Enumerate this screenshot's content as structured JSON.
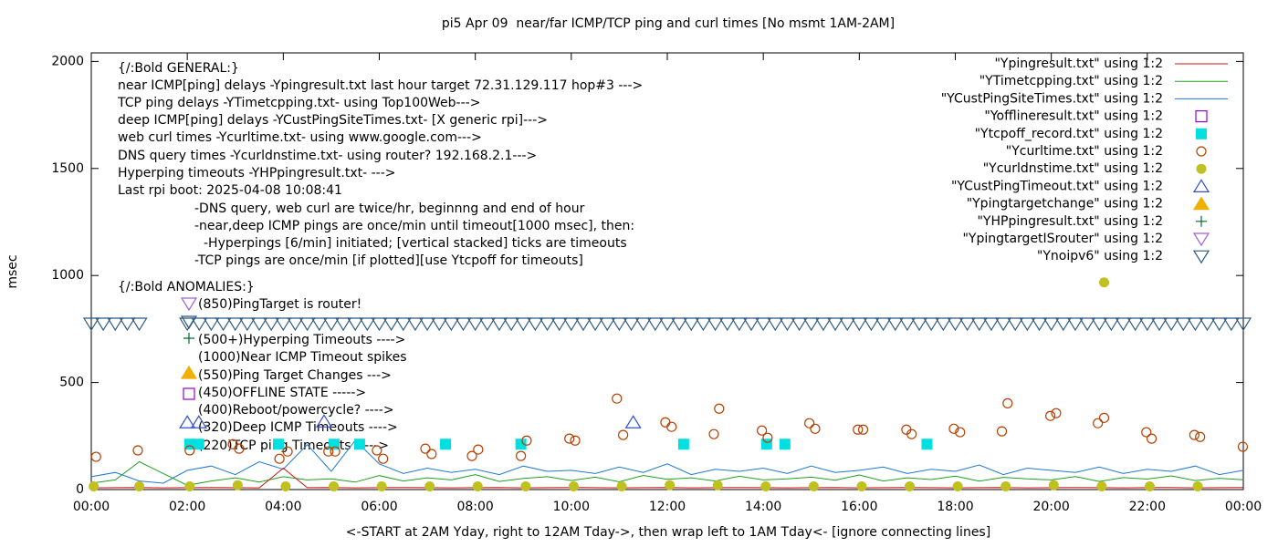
{
  "chart_data": {
    "type": "scatter",
    "title": "pi5 Apr 09  near/far ICMP/TCP ping and curl times [No msmt 1AM-2AM]",
    "xlabel": "<-START at 2AM Yday, right to 12AM Tday->, then wrap left to 1AM Tday<- [ignore connecting lines]",
    "ylabel": "msec",
    "xlim": [
      0,
      24
    ],
    "ylim": [
      0,
      2040
    ],
    "xticks": [
      {
        "value": 0,
        "label": "00:00"
      },
      {
        "value": 2,
        "label": "02:00"
      },
      {
        "value": 4,
        "label": "04:00"
      },
      {
        "value": 6,
        "label": "06:00"
      },
      {
        "value": 8,
        "label": "08:00"
      },
      {
        "value": 10,
        "label": "10:00"
      },
      {
        "value": 12,
        "label": "12:00"
      },
      {
        "value": 14,
        "label": "14:00"
      },
      {
        "value": 16,
        "label": "16:00"
      },
      {
        "value": 18,
        "label": "18:00"
      },
      {
        "value": 20,
        "label": "20:00"
      },
      {
        "value": 22,
        "label": "22:00"
      },
      {
        "value": 24,
        "label": "00:00"
      }
    ],
    "yticks": [
      0,
      500,
      1000,
      1500,
      2000
    ],
    "annotations": [
      "{/:Bold GENERAL:}",
      "near ICMP[ping] delays -Ypingresult.txt last hour target 72.31.129.117 hop#3 --->",
      "TCP ping delays -YTimetcpping.txt- using Top100Web--->",
      "deep ICMP[ping] delays -YCustPingSiteTimes.txt- [X generic rpi]--->",
      "web curl times -Ycurltime.txt- using www.google.com--->",
      "DNS query times -Ycurldnstime.txt- using router? 192.168.2.1--->",
      "Hyperping timeouts -YHPpingresult.txt- --->",
      "Last rpi boot: 2025-04-08 10:08:41",
      "-DNS query, web curl are twice/hr, beginnng and end of hour",
      "-near,deep ICMP pings are once/min until timeout[1000 msec], then:",
      "-Hyperpings [6/min] initiated; [vertical stacked] ticks are timeouts",
      "-TCP pings are once/min [if plotted][use Ytcpoff for timeouts]",
      "{/:Bold ANOMALIES:}",
      "(850)PingTarget is router!",
      "(500+)Hyperping Timeouts ---->",
      "(1000)Near ICMP Timeout spikes",
      "(550)Ping Target Changes --->",
      "(450)OFFLINE STATE ----->",
      "(400)Reboot/powercycle? ---->",
      "(320)Deep ICMP Timeouts ---->",
      "(220)TCP ping Timeouts ----->"
    ],
    "series": [
      {
        "name": "\"Ypingresult.txt\" using 1:2",
        "color": "#d01010",
        "marker": "line",
        "x": [
          0,
          0.5,
          1,
          1.5,
          2,
          2.5,
          3,
          3.5,
          4,
          4.5,
          5,
          5.5,
          6,
          6.5,
          7,
          7.5,
          8,
          8.5,
          9,
          9.5,
          10,
          10.5,
          11,
          11.5,
          12,
          12.5,
          13,
          13.5,
          14,
          14.5,
          15,
          15.5,
          16,
          16.5,
          17,
          17.5,
          18,
          18.5,
          19,
          19.5,
          20,
          20.5,
          21,
          21.5,
          22,
          22.5,
          23,
          23.5,
          24
        ],
        "values": [
          8,
          9,
          10,
          8,
          9,
          10,
          9,
          8,
          100,
          9,
          10,
          8,
          9,
          10,
          9,
          8,
          9,
          10,
          8,
          9,
          10,
          9,
          8,
          9,
          10,
          8,
          9,
          10,
          9,
          8,
          9,
          10,
          8,
          9,
          10,
          9,
          8,
          9,
          10,
          8,
          9,
          10,
          9,
          8,
          9,
          10,
          8,
          9,
          10
        ]
      },
      {
        "name": "\"YTimetcpping.txt\" using 1:2",
        "color": "#20a020",
        "marker": "line",
        "x": [
          0,
          0.5,
          1,
          1.5,
          2,
          2.5,
          3,
          3.5,
          4,
          4.5,
          5,
          5.5,
          6,
          6.5,
          7,
          7.5,
          8,
          8.5,
          9,
          9.5,
          10,
          10.5,
          11,
          11.5,
          12,
          12.5,
          13,
          13.5,
          14,
          14.5,
          15,
          15.5,
          16,
          16.5,
          17,
          17.5,
          18,
          18.5,
          19,
          19.5,
          20,
          20.5,
          21,
          21.5,
          22,
          22.5,
          23,
          23.5,
          24
        ],
        "values": [
          30,
          45,
          130,
          75,
          20,
          40,
          55,
          35,
          60,
          45,
          50,
          35,
          65,
          40,
          55,
          45,
          70,
          38,
          52,
          60,
          42,
          58,
          36,
          66,
          48,
          55,
          40,
          62,
          45,
          50,
          58,
          44,
          68,
          40,
          55,
          47,
          63,
          39,
          57,
          50,
          45,
          61,
          38,
          56,
          49,
          64,
          42,
          53,
          46
        ]
      },
      {
        "name": "\"YCustPingSiteTimes.txt\" using 1:2",
        "color": "#1f78d0",
        "marker": "line",
        "x": [
          0,
          0.5,
          1,
          1.5,
          2,
          2.5,
          3,
          3.5,
          4,
          4.5,
          5,
          5.5,
          6,
          6.5,
          7,
          7.5,
          8,
          8.5,
          9,
          9.5,
          10,
          10.5,
          11,
          11.5,
          12,
          12.5,
          13,
          13.5,
          14,
          14.5,
          15,
          15.5,
          16,
          16.5,
          17,
          17.5,
          18,
          18.5,
          19,
          19.5,
          20,
          20.5,
          21,
          21.5,
          22,
          22.5,
          23,
          23.5,
          24
        ],
        "values": [
          60,
          80,
          40,
          30,
          90,
          110,
          70,
          130,
          95,
          210,
          85,
          230,
          120,
          75,
          100,
          80,
          95,
          70,
          110,
          85,
          90,
          75,
          105,
          80,
          120,
          70,
          95,
          85,
          100,
          75,
          110,
          80,
          90,
          105,
          75,
          95,
          85,
          115,
          70,
          100,
          90,
          80,
          105,
          75,
          95,
          85,
          110,
          70,
          90
        ]
      },
      {
        "name": "\"Yofflineresult.txt\" using 1:2",
        "color": "#9400d3",
        "marker": "square-open",
        "x": [],
        "values": []
      },
      {
        "name": "\"Ytcpoff_record.txt\" using 1:2",
        "color": "#00e0e0",
        "marker": "square",
        "x": [
          2.05,
          2.24,
          3.9,
          5.06,
          5.59,
          7.38,
          8.95,
          12.34,
          14.07,
          14.45,
          17.41
        ],
        "values": [
          212,
          212,
          212,
          212,
          212,
          212,
          212,
          212,
          212,
          212,
          212
        ]
      },
      {
        "name": "\"Ycurltime.txt\" using 1:2",
        "color": "#b84000",
        "marker": "circle-open",
        "x": [
          0.1,
          0.97,
          2.05,
          2.95,
          3.08,
          3.92,
          4.09,
          4.94,
          5.08,
          5.95,
          6.08,
          6.96,
          7.09,
          7.93,
          8.06,
          8.95,
          9.07,
          9.96,
          10.08,
          10.95,
          11.08,
          11.96,
          12.09,
          12.97,
          13.08,
          13.97,
          14.09,
          14.96,
          15.08,
          15.97,
          16.08,
          16.98,
          17.09,
          17.97,
          18.1,
          18.97,
          19.09,
          19.98,
          20.1,
          20.97,
          21.1,
          21.98,
          22.09,
          22.98,
          23.1,
          23.99
        ],
        "values": [
          153,
          183,
          183,
          212,
          191,
          144,
          178,
          178,
          178,
          183,
          144,
          191,
          166,
          157,
          187,
          157,
          229,
          238,
          229,
          425,
          255,
          314,
          293,
          259,
          378,
          276,
          242,
          310,
          284,
          280,
          280,
          280,
          259,
          284,
          268,
          272,
          403,
          344,
          357,
          310,
          335,
          268,
          238,
          255,
          246,
          200
        ]
      },
      {
        "name": "\"Ycurldnstime.txt\" using 1:2",
        "color": "#c0c020",
        "marker": "circle",
        "x": [
          0.05,
          1,
          2.05,
          3.05,
          4.05,
          5.05,
          6.05,
          7.05,
          8.05,
          9.05,
          10.05,
          11.05,
          12.05,
          13.05,
          14.05,
          15.05,
          16.05,
          17.05,
          18.05,
          19.05,
          20.05,
          21.05,
          21.1,
          22.05,
          23.05
        ],
        "values": [
          15,
          15,
          15,
          20,
          15,
          15,
          15,
          15,
          15,
          15,
          15,
          15,
          20,
          20,
          15,
          15,
          15,
          15,
          15,
          15,
          20,
          15,
          968,
          15,
          15
        ]
      },
      {
        "name": "\"YCustPingTimeout.txt\" using 1:2",
        "color": "#3050d0",
        "marker": "triangle-up-open",
        "x": [
          2.0,
          2.24,
          4.85,
          11.29
        ],
        "values": [
          314,
          314,
          318,
          314
        ]
      },
      {
        "name": "\"Ypingtargetchange\" using 1:2",
        "color": "#f0b000",
        "marker": "triangle-up",
        "x": [],
        "values": []
      },
      {
        "name": "\"YHPpingresult.txt\" using 1:2",
        "color": "#006a30",
        "marker": "plus",
        "x": [],
        "values": []
      },
      {
        "name": "\"YpingtargetISrouter\" using 1:2",
        "color": "#a060e0",
        "marker": "triangle-down-open",
        "x": [],
        "values": []
      },
      {
        "name": "\"Ynoipv6\" using 1:2",
        "color": "#2c5a80",
        "marker": "triangle-down-open",
        "x": [
          0,
          0.25,
          0.5,
          0.75,
          1,
          2,
          2.25,
          2.5,
          2.75,
          3,
          3.25,
          3.5,
          3.75,
          4,
          4.25,
          4.5,
          4.75,
          5,
          5.25,
          5.5,
          5.75,
          6,
          6.25,
          6.5,
          6.75,
          7,
          7.25,
          7.5,
          7.75,
          8,
          8.25,
          8.5,
          8.75,
          9,
          9.25,
          9.5,
          9.75,
          10,
          10.25,
          10.5,
          10.75,
          11,
          11.25,
          11.5,
          11.75,
          12,
          12.25,
          12.5,
          12.75,
          13,
          13.25,
          13.5,
          13.75,
          14,
          14.25,
          14.5,
          14.75,
          15,
          15.25,
          15.5,
          15.75,
          16,
          16.25,
          16.5,
          16.75,
          17,
          17.25,
          17.5,
          17.75,
          18,
          18.25,
          18.5,
          18.75,
          19,
          19.25,
          19.5,
          19.75,
          20,
          20.25,
          20.5,
          20.75,
          21,
          21.25,
          21.5,
          21.75,
          22,
          22.25,
          22.5,
          22.75,
          23,
          23.25,
          23.5,
          23.75,
          24
        ],
        "values": [
          775,
          775,
          775,
          775,
          775,
          775,
          775,
          775,
          775,
          775,
          775,
          775,
          775,
          775,
          775,
          775,
          775,
          775,
          775,
          775,
          775,
          775,
          775,
          775,
          775,
          775,
          775,
          775,
          775,
          775,
          775,
          775,
          775,
          775,
          775,
          775,
          775,
          775,
          775,
          775,
          775,
          775,
          775,
          775,
          775,
          775,
          775,
          775,
          775,
          775,
          775,
          775,
          775,
          775,
          775,
          775,
          775,
          775,
          775,
          775,
          775,
          775,
          775,
          775,
          775,
          775,
          775,
          775,
          775,
          775,
          775,
          775,
          775,
          775,
          775,
          775,
          775,
          775,
          775,
          775,
          775,
          775,
          775,
          775,
          775,
          775,
          775,
          775,
          775,
          775,
          775,
          775,
          775,
          775
        ]
      }
    ]
  }
}
